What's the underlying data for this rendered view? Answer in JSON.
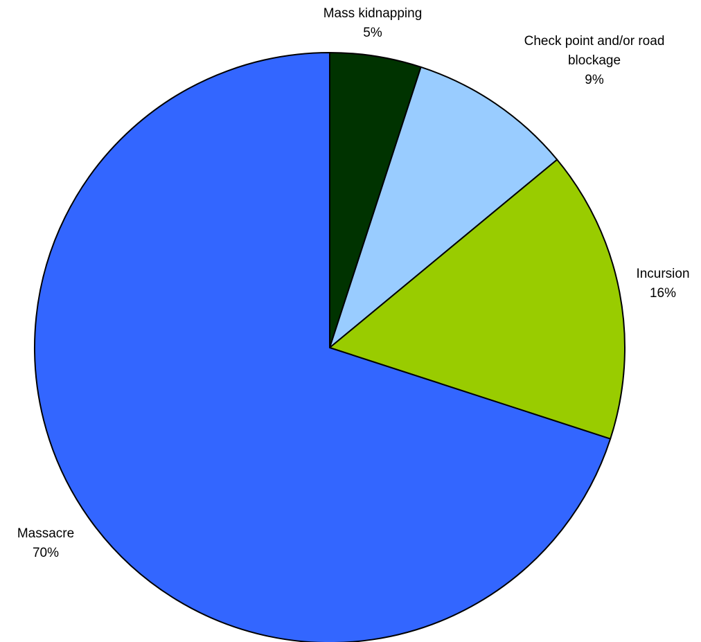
{
  "chart_data": {
    "type": "pie",
    "title": "",
    "slices": [
      {
        "label": "Mass kidnapping",
        "value": 5,
        "display": "5%",
        "color": "#003300"
      },
      {
        "label": "Check point and/or road blockage",
        "display_lines": [
          "Check point and/or road",
          "blockage"
        ],
        "value": 9,
        "display": "9%",
        "color": "#99ccff"
      },
      {
        "label": "Incursion",
        "value": 16,
        "display": "16%",
        "color": "#99cc00"
      },
      {
        "label": "Massacre",
        "value": 70,
        "display": "70%",
        "color": "#3366ff"
      }
    ],
    "start_angle": "12 o'clock",
    "direction": "clockwise",
    "legend": "none",
    "labels": "outside"
  }
}
